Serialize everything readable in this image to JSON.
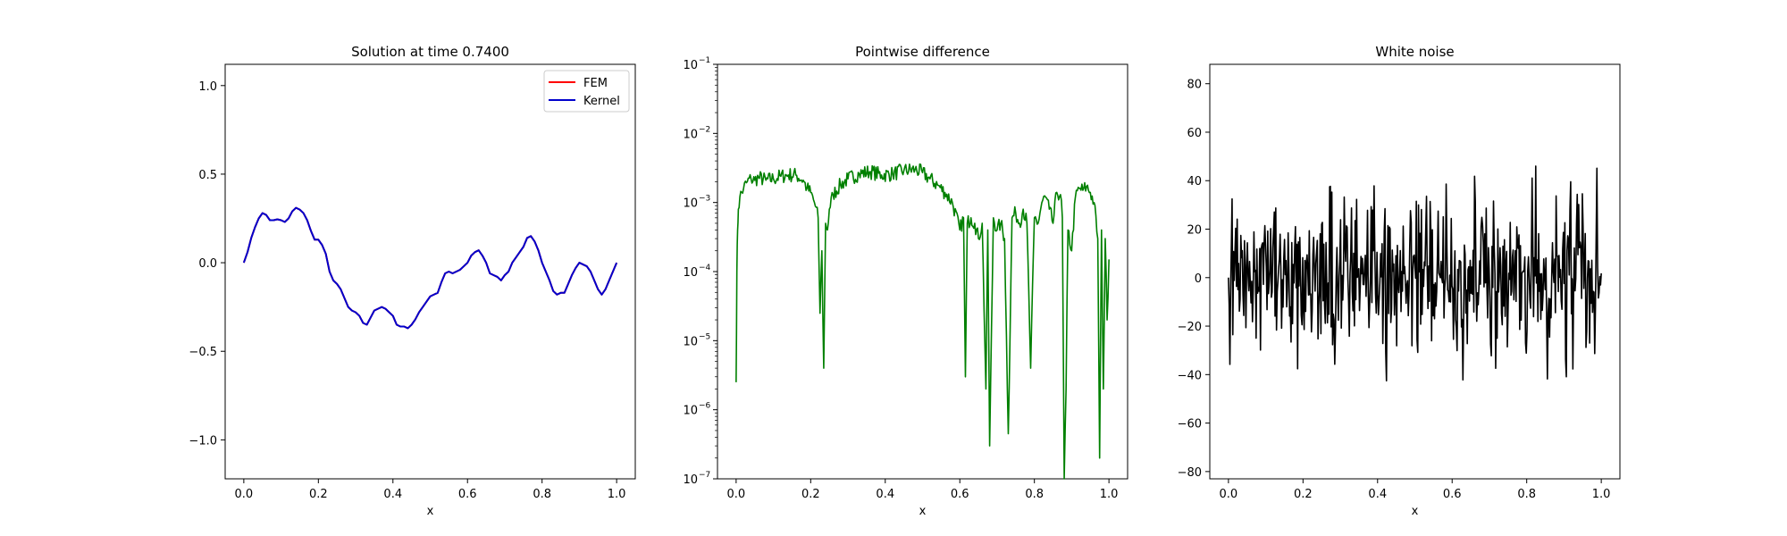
{
  "chart_data": [
    {
      "type": "line",
      "title": "Solution at time 0.7400",
      "xlabel": "x",
      "ylabel": "",
      "xlim": [
        -0.05,
        1.05
      ],
      "ylim": [
        -1.22,
        1.12
      ],
      "xticks": [
        "0.0",
        "0.2",
        "0.4",
        "0.6",
        "0.8",
        "1.0"
      ],
      "xtick_values": [
        0,
        0.2,
        0.4,
        0.6,
        0.8,
        1.0
      ],
      "yticks": [
        "−1.0",
        "−0.5",
        "0.0",
        "0.5",
        "1.0"
      ],
      "ytick_values": [
        -1.0,
        -0.5,
        0.0,
        0.5,
        1.0
      ],
      "legend": {
        "placement": "upper right",
        "entries": [
          {
            "label": "FEM",
            "color": "#ff0000"
          },
          {
            "label": "Kernel",
            "color": "#0000cc"
          }
        ]
      },
      "x": [
        0.0,
        0.01,
        0.02,
        0.03,
        0.04,
        0.05,
        0.06,
        0.07,
        0.08,
        0.09,
        0.1,
        0.11,
        0.12,
        0.13,
        0.14,
        0.15,
        0.16,
        0.17,
        0.18,
        0.19,
        0.2,
        0.21,
        0.22,
        0.23,
        0.24,
        0.25,
        0.26,
        0.27,
        0.28,
        0.29,
        0.3,
        0.31,
        0.32,
        0.33,
        0.34,
        0.35,
        0.36,
        0.37,
        0.38,
        0.39,
        0.4,
        0.41,
        0.42,
        0.43,
        0.44,
        0.45,
        0.46,
        0.47,
        0.48,
        0.49,
        0.5,
        0.51,
        0.52,
        0.53,
        0.54,
        0.55,
        0.56,
        0.57,
        0.58,
        0.59,
        0.6,
        0.61,
        0.62,
        0.63,
        0.64,
        0.65,
        0.66,
        0.67,
        0.68,
        0.69,
        0.7,
        0.71,
        0.72,
        0.73,
        0.74,
        0.75,
        0.76,
        0.77,
        0.78,
        0.79,
        0.8,
        0.81,
        0.82,
        0.83,
        0.84,
        0.85,
        0.86,
        0.87,
        0.88,
        0.89,
        0.9,
        0.91,
        0.92,
        0.93,
        0.94,
        0.95,
        0.96,
        0.97,
        0.98,
        0.99,
        1.0
      ],
      "series": [
        {
          "name": "FEM",
          "color": "#ff0000",
          "values": [
            0.0,
            0.06,
            0.14,
            0.2,
            0.25,
            0.28,
            0.27,
            0.24,
            0.24,
            0.245,
            0.24,
            0.23,
            0.25,
            0.29,
            0.31,
            0.3,
            0.28,
            0.24,
            0.18,
            0.13,
            0.13,
            0.1,
            0.05,
            -0.05,
            -0.1,
            -0.12,
            -0.15,
            -0.2,
            -0.25,
            -0.27,
            -0.28,
            -0.3,
            -0.34,
            -0.35,
            -0.31,
            -0.27,
            -0.26,
            -0.25,
            -0.26,
            -0.28,
            -0.3,
            -0.35,
            -0.36,
            -0.36,
            -0.37,
            -0.35,
            -0.32,
            -0.28,
            -0.25,
            -0.22,
            -0.19,
            -0.18,
            -0.17,
            -0.11,
            -0.06,
            -0.05,
            -0.06,
            -0.05,
            -0.04,
            -0.02,
            0.0,
            0.04,
            0.06,
            0.07,
            0.04,
            0.0,
            -0.06,
            -0.07,
            -0.08,
            -0.1,
            -0.07,
            -0.05,
            0.0,
            0.03,
            0.06,
            0.09,
            0.14,
            0.15,
            0.12,
            0.07,
            0.0,
            -0.05,
            -0.1,
            -0.16,
            -0.18,
            -0.17,
            -0.17,
            -0.12,
            -0.07,
            -0.03,
            0.0,
            -0.01,
            -0.02,
            -0.05,
            -0.1,
            -0.15,
            -0.18,
            -0.15,
            -0.1,
            -0.05,
            0.0
          ]
        },
        {
          "name": "Kernel",
          "color": "#0000cc",
          "values": [
            0.0,
            0.06,
            0.14,
            0.2,
            0.25,
            0.28,
            0.27,
            0.24,
            0.24,
            0.245,
            0.24,
            0.23,
            0.25,
            0.29,
            0.31,
            0.3,
            0.28,
            0.24,
            0.18,
            0.13,
            0.13,
            0.1,
            0.05,
            -0.05,
            -0.1,
            -0.12,
            -0.15,
            -0.2,
            -0.25,
            -0.27,
            -0.28,
            -0.3,
            -0.34,
            -0.35,
            -0.31,
            -0.27,
            -0.26,
            -0.25,
            -0.26,
            -0.28,
            -0.3,
            -0.35,
            -0.36,
            -0.36,
            -0.37,
            -0.35,
            -0.32,
            -0.28,
            -0.25,
            -0.22,
            -0.19,
            -0.18,
            -0.17,
            -0.11,
            -0.06,
            -0.05,
            -0.06,
            -0.05,
            -0.04,
            -0.02,
            0.0,
            0.04,
            0.06,
            0.07,
            0.04,
            0.0,
            -0.06,
            -0.07,
            -0.08,
            -0.1,
            -0.07,
            -0.05,
            0.0,
            0.03,
            0.06,
            0.09,
            0.14,
            0.15,
            0.12,
            0.07,
            0.0,
            -0.05,
            -0.1,
            -0.16,
            -0.18,
            -0.17,
            -0.17,
            -0.12,
            -0.07,
            -0.03,
            0.0,
            -0.01,
            -0.02,
            -0.05,
            -0.1,
            -0.15,
            -0.18,
            -0.15,
            -0.1,
            -0.05,
            0.0
          ]
        }
      ]
    },
    {
      "type": "line",
      "title": "Pointwise difference",
      "xlabel": "x",
      "ylabel": "",
      "yscale": "log",
      "xlim": [
        -0.05,
        1.05
      ],
      "ylim": [
        1e-07,
        0.1
      ],
      "xticks": [
        "0.0",
        "0.2",
        "0.4",
        "0.6",
        "0.8",
        "1.0"
      ],
      "xtick_values": [
        0,
        0.2,
        0.4,
        0.6,
        0.8,
        1.0
      ],
      "yticks": [
        "10",
        "10",
        "10",
        "10",
        "10",
        "10",
        "10"
      ],
      "ytick_exponents": [
        "−7",
        "−6",
        "−5",
        "−4",
        "−3",
        "−2",
        "−1"
      ],
      "ytick_values": [
        1e-07,
        1e-06,
        1e-05,
        0.0001,
        0.001,
        0.01,
        0.1
      ],
      "series": [
        {
          "name": "",
          "color": "#008000",
          "x": [
            0.0,
            0.002,
            0.004,
            0.006,
            0.01,
            0.02,
            0.03,
            0.04,
            0.05,
            0.06,
            0.08,
            0.1,
            0.12,
            0.14,
            0.16,
            0.18,
            0.19,
            0.2,
            0.21,
            0.22,
            0.225,
            0.23,
            0.235,
            0.24,
            0.245,
            0.25,
            0.26,
            0.28,
            0.3,
            0.33,
            0.36,
            0.39,
            0.42,
            0.45,
            0.48,
            0.5,
            0.52,
            0.54,
            0.56,
            0.58,
            0.6,
            0.61,
            0.615,
            0.62,
            0.63,
            0.64,
            0.65,
            0.66,
            0.67,
            0.675,
            0.68,
            0.69,
            0.7,
            0.71,
            0.72,
            0.73,
            0.74,
            0.75,
            0.76,
            0.77,
            0.78,
            0.79,
            0.8,
            0.81,
            0.82,
            0.83,
            0.84,
            0.85,
            0.86,
            0.87,
            0.875,
            0.88,
            0.885,
            0.89,
            0.9,
            0.91,
            0.92,
            0.93,
            0.94,
            0.95,
            0.96,
            0.97,
            0.975,
            0.98,
            0.985,
            0.99,
            0.995,
            1.0
          ],
          "values": [
            2.5e-06,
            0.0001,
            0.0004,
            0.0008,
            0.0012,
            0.0016,
            0.002,
            0.0022,
            0.0021,
            0.0023,
            0.0021,
            0.0022,
            0.0024,
            0.0025,
            0.0025,
            0.0021,
            0.0016,
            0.0014,
            0.001,
            0.0006,
            2.5e-05,
            0.0002,
            4e-06,
            0.0005,
            0.0004,
            0.0008,
            0.0013,
            0.0018,
            0.0022,
            0.0026,
            0.0028,
            0.0025,
            0.0026,
            0.0029,
            0.003,
            0.0027,
            0.0022,
            0.0018,
            0.0014,
            0.001,
            0.0004,
            0.0006,
            3e-06,
            0.0005,
            0.0006,
            0.0005,
            0.0003,
            0.0005,
            2e-06,
            0.0004,
            3e-07,
            0.0006,
            0.0004,
            0.0005,
            0.0003,
            4.5e-07,
            0.0006,
            0.0007,
            0.0005,
            0.0008,
            0.0005,
            4e-06,
            0.0006,
            0.0005,
            0.001,
            0.0012,
            0.0008,
            0.0005,
            0.0014,
            0.0013,
            0.0006,
            1e-07,
            2e-06,
            0.0004,
            0.0002,
            0.0012,
            0.0016,
            0.0015,
            0.0017,
            0.0014,
            0.001,
            0.0003,
            2e-07,
            0.0004,
            2e-06,
            0.0003,
            2e-05,
            0.00015
          ]
        }
      ]
    },
    {
      "type": "line",
      "title": "White noise",
      "xlabel": "x",
      "ylabel": "",
      "xlim": [
        -0.05,
        1.05
      ],
      "ylim": [
        -83,
        88
      ],
      "xticks": [
        "0.0",
        "0.2",
        "0.4",
        "0.6",
        "0.8",
        "1.0"
      ],
      "xtick_values": [
        0,
        0.2,
        0.4,
        0.6,
        0.8,
        1.0
      ],
      "yticks": [
        "−80",
        "−60",
        "−40",
        "−20",
        "0",
        "20",
        "40",
        "60",
        "80"
      ],
      "ytick_values": [
        -80,
        -60,
        -40,
        -20,
        0,
        20,
        40,
        60,
        80
      ],
      "noise_samples": 512,
      "noise_range": [
        -57,
        46
      ],
      "series": [
        {
          "name": "",
          "color": "#000000"
        }
      ]
    }
  ]
}
